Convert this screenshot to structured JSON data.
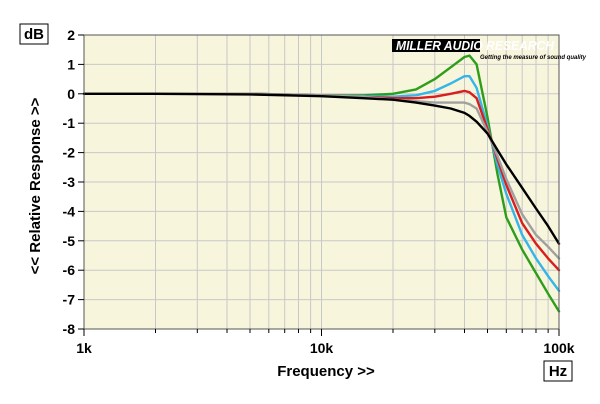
{
  "chart_data": {
    "type": "line",
    "title": "",
    "xlabel": "Frequency >>",
    "ylabel": "<< Relative Response >>",
    "x_unit": "Hz",
    "y_unit": "dB",
    "x_scale": "log",
    "xlim": [
      1000,
      100000
    ],
    "ylim": [
      -8,
      2
    ],
    "x_ticks": [
      {
        "value": 1000,
        "label": "1k"
      },
      {
        "value": 10000,
        "label": "10k"
      },
      {
        "value": 100000,
        "label": "100k"
      }
    ],
    "y_ticks": [
      2,
      1,
      0,
      -1,
      -2,
      -3,
      -4,
      -5,
      -6,
      -7,
      -8
    ],
    "grid": true,
    "legend": "none",
    "logo": {
      "main": "MILLER AUDIO RESEARCH",
      "tagline": "Getting the measure of sound quality"
    },
    "x": [
      1000,
      2000,
      5000,
      10000,
      15000,
      20000,
      25000,
      30000,
      35000,
      40000,
      42000,
      45000,
      50000,
      55000,
      60000,
      70000,
      80000,
      90000,
      100000
    ],
    "series": [
      {
        "color": "#2e9e1a",
        "values": [
          0,
          0,
          0,
          -0.05,
          -0.05,
          0,
          0.15,
          0.5,
          0.9,
          1.25,
          1.3,
          1.0,
          -0.8,
          -2.7,
          -4.2,
          -5.3,
          -6.1,
          -6.8,
          -7.4
        ]
      },
      {
        "color": "#35b5e8",
        "values": [
          0,
          0,
          0,
          -0.05,
          -0.08,
          -0.1,
          -0.05,
          0.1,
          0.35,
          0.6,
          0.6,
          0.2,
          -1.1,
          -2.4,
          -3.4,
          -4.8,
          -5.6,
          -6.2,
          -6.7
        ]
      },
      {
        "color": "#d81e1e",
        "values": [
          0,
          0,
          0,
          -0.05,
          -0.1,
          -0.15,
          -0.15,
          -0.1,
          0,
          0.1,
          0.05,
          -0.15,
          -1.2,
          -2.2,
          -3.1,
          -4.4,
          -5.1,
          -5.6,
          -6.0
        ]
      },
      {
        "color": "#a0a0a0",
        "values": [
          0,
          0,
          0,
          -0.05,
          -0.1,
          -0.2,
          -0.25,
          -0.3,
          -0.3,
          -0.3,
          -0.35,
          -0.5,
          -1.3,
          -2.1,
          -2.9,
          -4.1,
          -4.8,
          -5.2,
          -5.6
        ]
      },
      {
        "color": "#000000",
        "values": [
          0,
          0,
          -0.02,
          -0.08,
          -0.15,
          -0.2,
          -0.3,
          -0.4,
          -0.5,
          -0.65,
          -0.75,
          -0.95,
          -1.35,
          -1.9,
          -2.4,
          -3.2,
          -3.9,
          -4.5,
          -5.1
        ]
      }
    ]
  }
}
